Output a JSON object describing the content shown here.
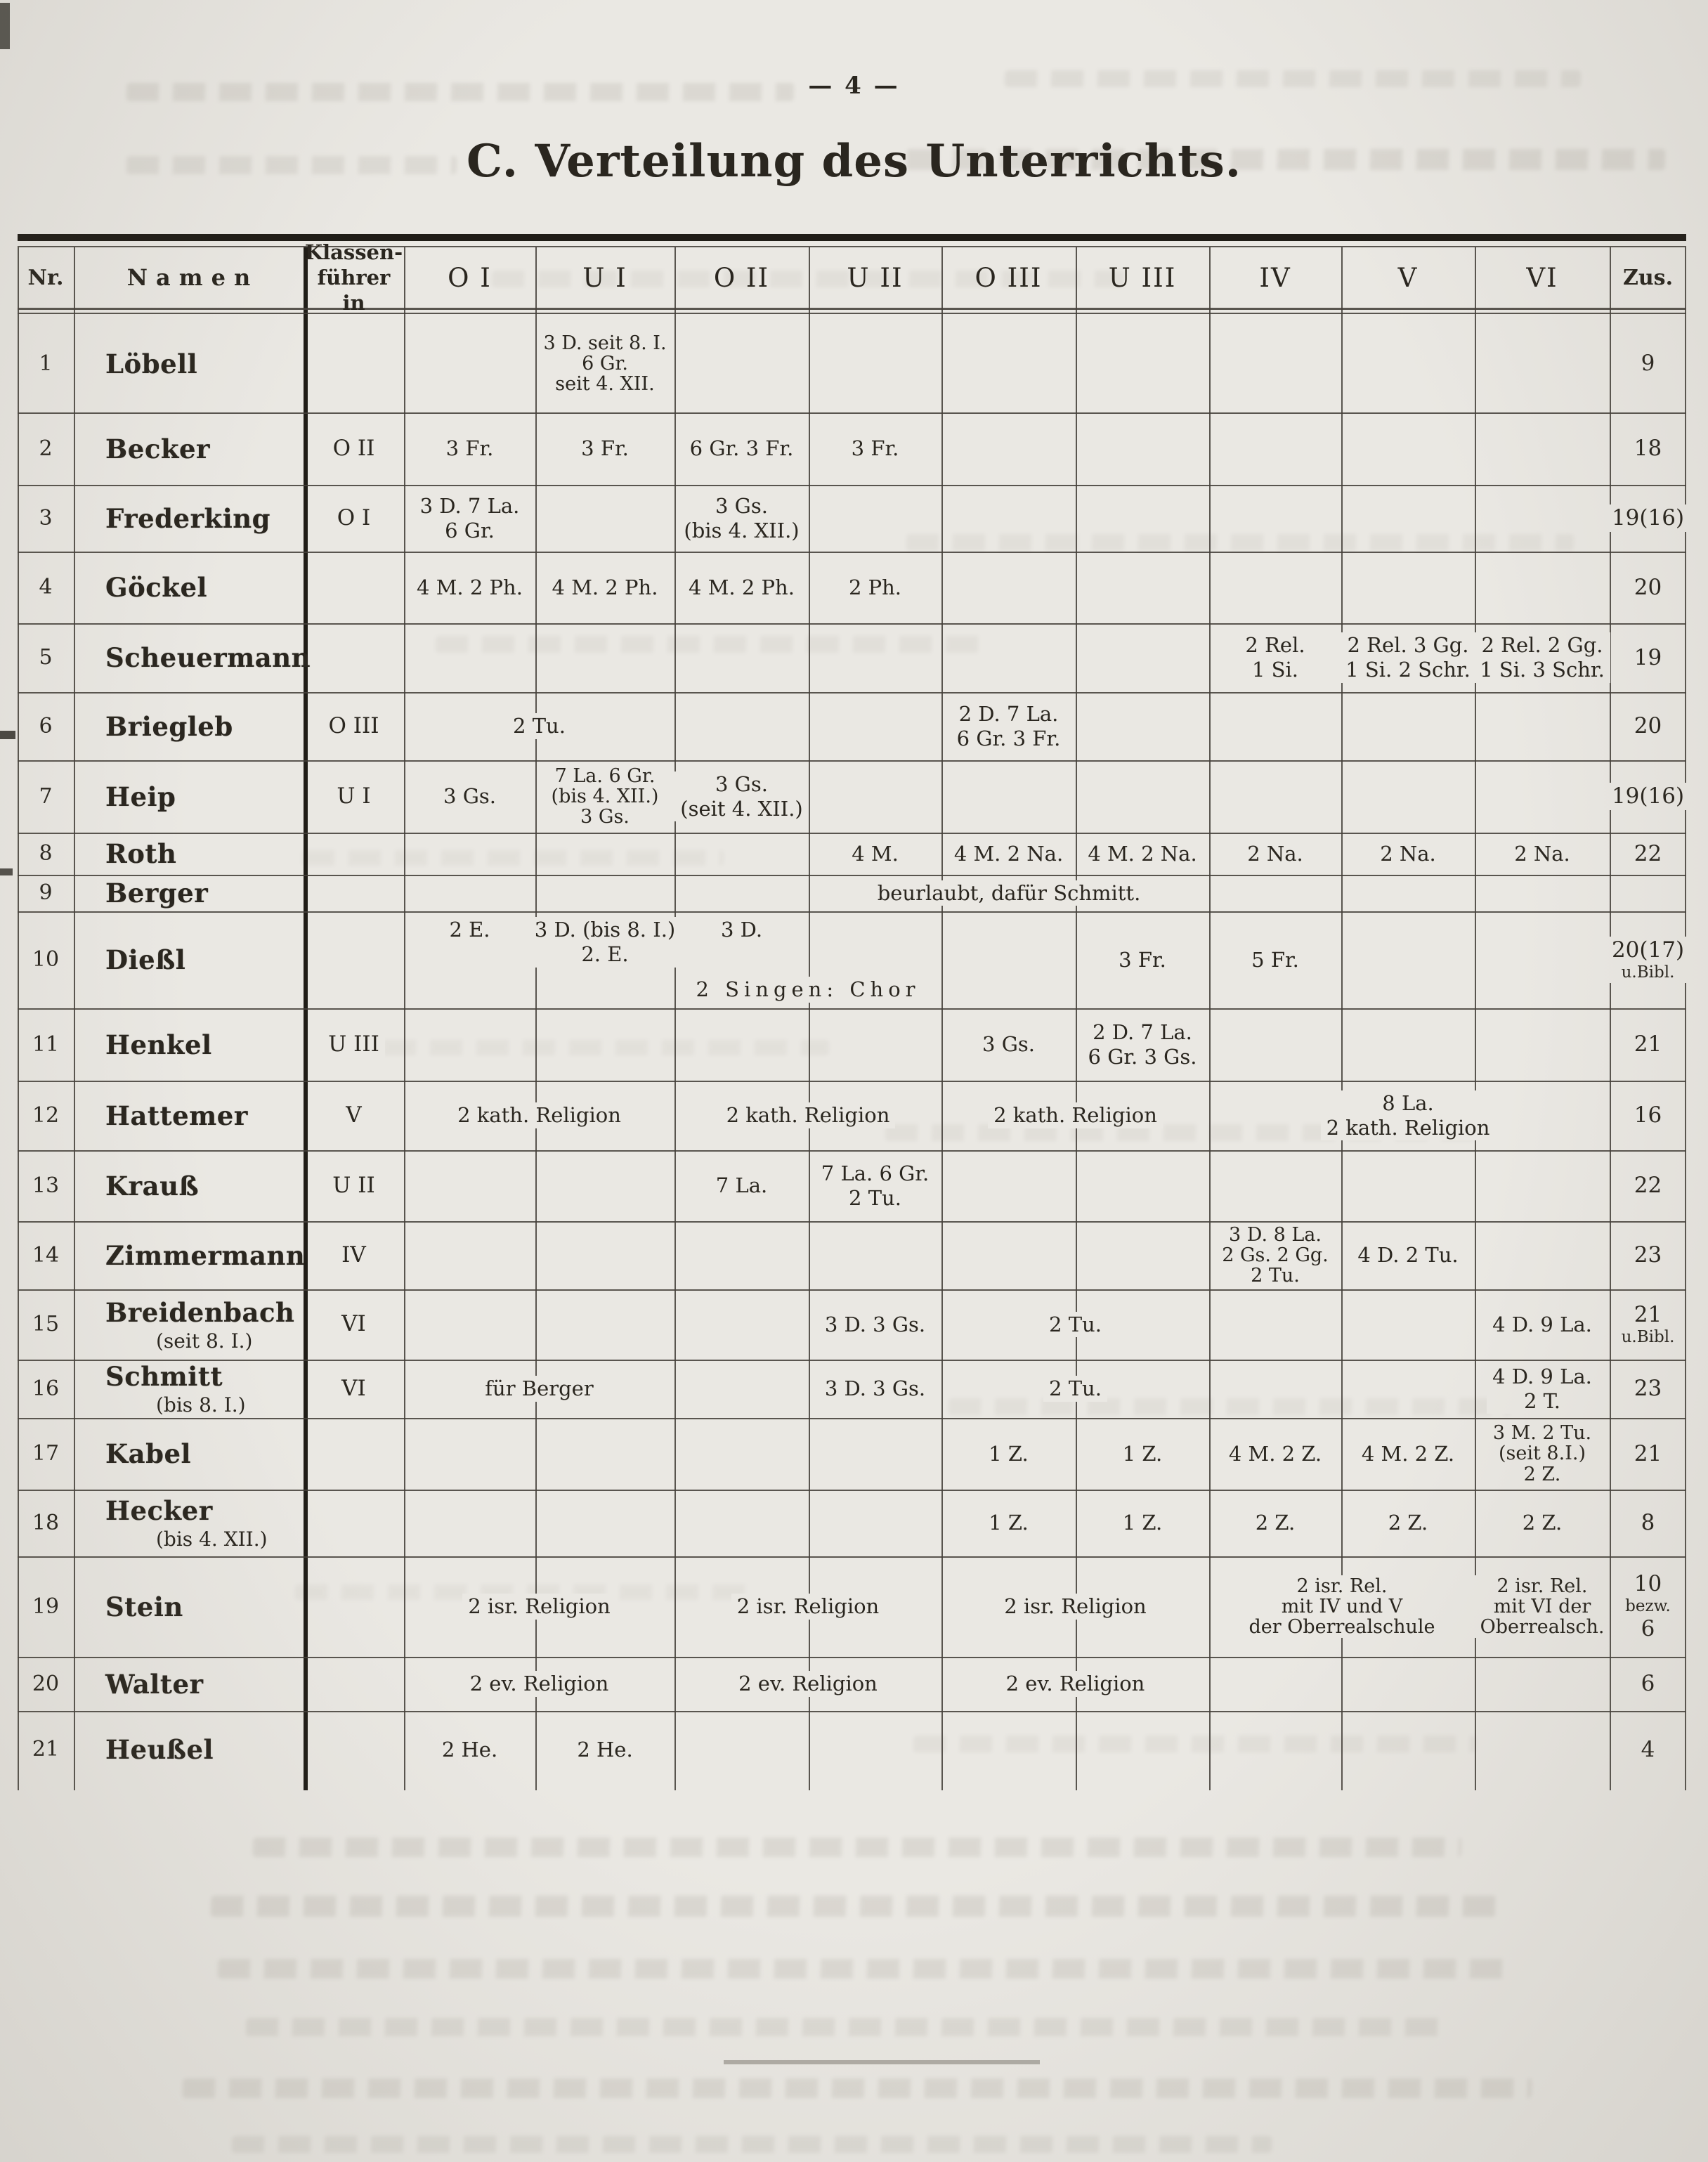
{
  "page": {
    "number": "— 4 —",
    "title": "C. Verteilung des Unterrichts."
  },
  "table": {
    "header": {
      "nr": "Nr.",
      "name": "Namen",
      "fuehrer": [
        "Klassen-",
        "führer in"
      ],
      "classes": [
        "O I",
        "U I",
        "O II",
        "U II",
        "O III",
        "U III",
        "IV",
        "V",
        "VI"
      ],
      "zus": "Zus."
    },
    "class_keys": [
      "OI",
      "UI",
      "OII",
      "UII",
      "OIII",
      "UIII",
      "IV",
      "V",
      "VI"
    ],
    "rows": [
      {
        "nr": "1",
        "name": "Löbell",
        "cells": {
          "UI": [
            "3 D. seit 8. I.",
            "6 Gr.",
            "seit 4. XII."
          ]
        },
        "zus": [
          "9"
        ]
      },
      {
        "nr": "2",
        "name": "Becker",
        "fuehrer": "O II",
        "cells": {
          "OI": [
            "3 Fr."
          ],
          "UI": [
            "3 Fr."
          ],
          "OII": [
            "6 Gr. 3 Fr."
          ],
          "UII": [
            "3 Fr."
          ]
        },
        "zus": [
          "18"
        ]
      },
      {
        "nr": "3",
        "name": "Frederking",
        "fuehrer": "O I",
        "cells": {
          "OI": [
            "3 D. 7 La.",
            "6 Gr."
          ],
          "OII": [
            "3 Gs.",
            "(bis 4. XII.)"
          ]
        },
        "zus": [
          "19(16)"
        ]
      },
      {
        "nr": "4",
        "name": "Göckel",
        "cells": {
          "OI": [
            "4 M. 2 Ph."
          ],
          "UI": [
            "4 M. 2 Ph."
          ],
          "OII": [
            "4 M. 2 Ph."
          ],
          "UII": [
            "2 Ph."
          ]
        },
        "zus": [
          "20"
        ]
      },
      {
        "nr": "5",
        "name": "Scheuermann",
        "cells": {
          "IV": [
            "2 Rel.",
            "1 Si."
          ],
          "V": [
            "2 Rel. 3 Gg.",
            "1 Si. 2 Schr."
          ],
          "VI": [
            "2 Rel. 2 Gg.",
            "1 Si. 3 Schr."
          ]
        },
        "zus": [
          "19"
        ]
      },
      {
        "nr": "6",
        "name": "Briegleb",
        "fuehrer": "O III",
        "cells": {
          "OIII": [
            "2 D. 7 La.",
            "6 Gr. 3 Fr."
          ]
        },
        "spans": [
          {
            "from": "OI",
            "to": "UI",
            "lines": [
              "2 Tu."
            ]
          }
        ],
        "zus": [
          "20"
        ]
      },
      {
        "nr": "7",
        "name": "Heip",
        "fuehrer": "U I",
        "cells": {
          "OI": [
            "3 Gs."
          ],
          "UI": [
            "7 La. 6 Gr.",
            "(bis 4. XII.)",
            "3 Gs."
          ],
          "OII": [
            "3 Gs.",
            "(seit 4. XII.)"
          ]
        },
        "zus": [
          "19(16)"
        ]
      },
      {
        "nr": "8",
        "name": "Roth",
        "cells": {
          "UII": [
            "4 M."
          ],
          "OIII": [
            "4 M. 2 Na."
          ],
          "UIII": [
            "4 M. 2 Na."
          ],
          "IV": [
            "2 Na."
          ],
          "V": [
            "2 Na."
          ],
          "VI": [
            "2 Na."
          ]
        },
        "zus": [
          "22"
        ]
      },
      {
        "nr": "9",
        "name": "Berger",
        "spans": [
          {
            "from": "UII",
            "to": "UIII",
            "lines": [
              "beurlaubt, dafür Schmitt."
            ]
          }
        ]
      },
      {
        "nr": "10",
        "name": "Dießl",
        "stack": true,
        "cells": {
          "OI": {
            "lines": [
              "2 E."
            ],
            "va": "top"
          },
          "UI": {
            "lines": [
              "3 D. (bis 8. I.)",
              "2. E."
            ],
            "va": "top"
          },
          "OII": {
            "lines": [
              "3 D."
            ],
            "va": "top"
          },
          "UIII": [
            "3 Fr."
          ],
          "IV": [
            "5 Fr."
          ]
        },
        "spans": [
          {
            "from": "OII",
            "to": "UII",
            "lines": [
              "2 Singen: Chor"
            ],
            "spaced": true,
            "line2": true
          }
        ],
        "zus": [
          "20(17)",
          {
            "t": "u.Bibl.",
            "small": true
          }
        ]
      },
      {
        "nr": "11",
        "name": "Henkel",
        "fuehrer": "U III",
        "cells": {
          "OIII": [
            "3 Gs."
          ],
          "UIII": [
            "2 D. 7 La.",
            "6 Gr. 3 Gs."
          ]
        },
        "zus": [
          "21"
        ]
      },
      {
        "nr": "12",
        "name": "Hattemer",
        "fuehrer": "V",
        "cells": {
          "V": [
            "8 La.",
            "2 kath. Religion"
          ]
        },
        "spans": [
          {
            "from": "OI",
            "to": "UI",
            "lines": [
              "2 kath. Religion"
            ]
          },
          {
            "from": "OII",
            "to": "UII",
            "lines": [
              "2 kath. Religion"
            ]
          },
          {
            "from": "OIII",
            "to": "UIII",
            "lines": [
              "2 kath. Religion"
            ]
          }
        ],
        "zus": [
          "16"
        ]
      },
      {
        "nr": "13",
        "name": "Krauß",
        "fuehrer": "U II",
        "cells": {
          "OII": [
            "7 La."
          ],
          "UII": [
            "7 La. 6 Gr.",
            "2 Tu."
          ]
        },
        "zus": [
          "22"
        ]
      },
      {
        "nr": "14",
        "name": "Zimmermann",
        "fuehrer": "IV",
        "cells": {
          "IV": [
            "3 D. 8 La.",
            "2 Gs. 2 Gg.",
            "2 Tu."
          ],
          "V": [
            "4 D. 2 Tu."
          ]
        },
        "zus": [
          "23"
        ]
      },
      {
        "nr": "15",
        "name": "Breidenbach",
        "note": "(seit 8. I.)",
        "fuehrer": "VI",
        "cells": {
          "UII": [
            "3 D. 3 Gs."
          ],
          "VI": [
            "4 D. 9 La."
          ]
        },
        "spans": [
          {
            "from": "OIII",
            "to": "UIII",
            "lines": [
              "2 Tu."
            ]
          }
        ],
        "zus": [
          "21",
          {
            "t": "u.Bibl.",
            "small": true
          }
        ]
      },
      {
        "nr": "16",
        "name": "Schmitt",
        "note": "(bis 8. I.)",
        "fuehrer": "VI",
        "cells": {
          "UII": [
            "3 D. 3 Gs."
          ],
          "VI": [
            "4 D. 9 La.",
            "2 T."
          ]
        },
        "spans": [
          {
            "from": "OI",
            "to": "UI",
            "lines": [
              "für Berger"
            ]
          },
          {
            "from": "OIII",
            "to": "UIII",
            "lines": [
              "2 Tu."
            ]
          }
        ],
        "zus": [
          "23"
        ]
      },
      {
        "nr": "17",
        "name": "Kabel",
        "cells": {
          "OIII": [
            "1 Z."
          ],
          "UIII": [
            "1 Z."
          ],
          "IV": [
            "4 M. 2 Z."
          ],
          "V": [
            "4 M. 2 Z."
          ],
          "VI": [
            "3 M. 2 Tu.",
            "(seit 8.I.)",
            "2 Z."
          ]
        },
        "zus": [
          "21"
        ]
      },
      {
        "nr": "18",
        "name": "Hecker",
        "note": "(bis 4. XII.)",
        "cells": {
          "OIII": [
            "1 Z."
          ],
          "UIII": [
            "1 Z."
          ],
          "IV": [
            "2 Z."
          ],
          "V": [
            "2 Z."
          ],
          "VI": [
            "2 Z."
          ]
        },
        "zus": [
          "8"
        ]
      },
      {
        "nr": "19",
        "name": "Stein",
        "cells": {
          "VI": [
            "2 isr. Rel.",
            "mit VI der",
            "Oberrealsch."
          ]
        },
        "spans": [
          {
            "from": "OI",
            "to": "UI",
            "lines": [
              "2 isr. Religion"
            ]
          },
          {
            "from": "OII",
            "to": "UII",
            "lines": [
              "2 isr. Religion"
            ]
          },
          {
            "from": "OIII",
            "to": "UIII",
            "lines": [
              "2 isr. Religion"
            ]
          },
          {
            "from": "IV",
            "to": "V",
            "lines": [
              "2 isr. Rel.",
              "mit IV und V",
              "der Oberrealschule"
            ]
          }
        ],
        "zus": [
          "10",
          {
            "t": "bezw.",
            "small": true
          },
          "6"
        ]
      },
      {
        "nr": "20",
        "name": "Walter",
        "spans": [
          {
            "from": "OI",
            "to": "UI",
            "lines": [
              "2 ev. Religion"
            ]
          },
          {
            "from": "OII",
            "to": "UII",
            "lines": [
              "2 ev. Religion"
            ]
          },
          {
            "from": "OIII",
            "to": "UIII",
            "lines": [
              "2 ev. Religion"
            ]
          }
        ],
        "zus": [
          "6"
        ]
      },
      {
        "nr": "21",
        "name": "Heußel",
        "cells": {
          "OI": [
            "2 He."
          ],
          "UI": [
            "2 He."
          ]
        },
        "zus": [
          "4"
        ]
      }
    ]
  }
}
